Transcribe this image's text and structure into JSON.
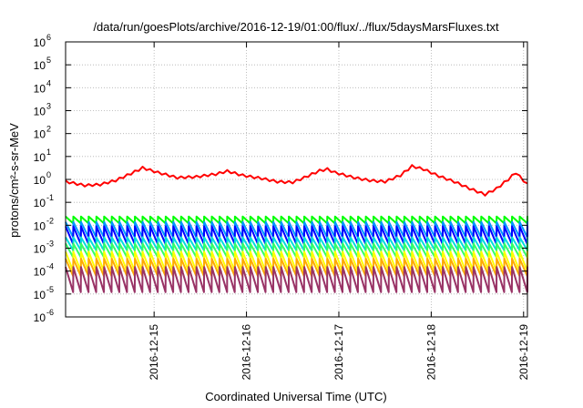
{
  "chart_data": {
    "type": "line",
    "title": "/data/run/goesPlots/archive/2016-12-19/01:00/flux/../flux/5daysMarsFluxes.txt",
    "xlabel": "Coordinated Universal Time (UTC)",
    "ylabel": "protons/cm²-s-sr-MeV",
    "y_scale": "log",
    "ylim": [
      1e-06,
      1000000.0
    ],
    "y_ticks": [
      {
        "value": 1e-06,
        "base": "10",
        "exp": "-6"
      },
      {
        "value": 1e-05,
        "base": "10",
        "exp": "-5"
      },
      {
        "value": 0.0001,
        "base": "10",
        "exp": "-4"
      },
      {
        "value": 0.001,
        "base": "10",
        "exp": "-3"
      },
      {
        "value": 0.01,
        "base": "10",
        "exp": "-2"
      },
      {
        "value": 0.1,
        "base": "10",
        "exp": "-1"
      },
      {
        "value": 1,
        "base": "10",
        "exp": "0"
      },
      {
        "value": 10,
        "base": "10",
        "exp": "1"
      },
      {
        "value": 100,
        "base": "10",
        "exp": "2"
      },
      {
        "value": 1000,
        "base": "10",
        "exp": "3"
      },
      {
        "value": 10000,
        "base": "10",
        "exp": "4"
      },
      {
        "value": 100000,
        "base": "10",
        "exp": "5"
      },
      {
        "value": 1000000,
        "base": "10",
        "exp": "6"
      }
    ],
    "xlim": [
      "2016-12-14 01:00",
      "2016-12-19 01:00"
    ],
    "x_ticks": [
      "2016-12-15",
      "2016-12-16",
      "2016-12-17",
      "2016-12-18",
      "2016-12-19"
    ],
    "grid": true,
    "sawtooth_period_hours": 2,
    "series": [
      {
        "color": "#ff0000",
        "points": [
          [
            "2016-12-14 01:00",
            0.8
          ],
          [
            "2016-12-14 06:00",
            0.55
          ],
          [
            "2016-12-14 10:00",
            0.6
          ],
          [
            "2016-12-14 14:00",
            0.9
          ],
          [
            "2016-12-14 18:00",
            1.8
          ],
          [
            "2016-12-14 21:00",
            3.2
          ],
          [
            "2016-12-15 01:00",
            2.0
          ],
          [
            "2016-12-15 06:00",
            1.2
          ],
          [
            "2016-12-15 11:00",
            1.3
          ],
          [
            "2016-12-15 16:00",
            1.7
          ],
          [
            "2016-12-15 19:00",
            2.3
          ],
          [
            "2016-12-15 23:00",
            1.5
          ],
          [
            "2016-12-16 04:00",
            1.1
          ],
          [
            "2016-12-16 08:00",
            0.8
          ],
          [
            "2016-12-16 12:00",
            0.75
          ],
          [
            "2016-12-16 15:00",
            1.2
          ],
          [
            "2016-12-16 19:00",
            2.4
          ],
          [
            "2016-12-16 21:00",
            2.8
          ],
          [
            "2016-12-16 23:00",
            2.0
          ],
          [
            "2016-12-17 04:00",
            1.2
          ],
          [
            "2016-12-17 08:00",
            0.9
          ],
          [
            "2016-12-17 12:00",
            0.8
          ],
          [
            "2016-12-17 16:00",
            1.5
          ],
          [
            "2016-12-17 19:00",
            3.8
          ],
          [
            "2016-12-17 22:00",
            2.8
          ],
          [
            "2016-12-18 02:00",
            1.4
          ],
          [
            "2016-12-18 06:00",
            0.8
          ],
          [
            "2016-12-18 10:00",
            0.4
          ],
          [
            "2016-12-18 14:00",
            0.22
          ],
          [
            "2016-12-18 17:00",
            0.4
          ],
          [
            "2016-12-18 20:00",
            1.0
          ],
          [
            "2016-12-18 22:00",
            2.0
          ],
          [
            "2016-12-19 01:00",
            0.6
          ]
        ]
      },
      {
        "color": "#00ff00",
        "range": [
          0.012,
          0.024
        ]
      },
      {
        "color": "#0099ff",
        "range": [
          0.003,
          0.014
        ]
      },
      {
        "color": "#0000ff",
        "range": [
          0.0015,
          0.009
        ]
      },
      {
        "color": "#00dddd",
        "range": [
          0.0008,
          0.003
        ]
      },
      {
        "color": "#33ff66",
        "range": [
          0.0004,
          0.0016
        ]
      },
      {
        "color": "#ffff00",
        "range": [
          0.0001,
          0.0007
        ]
      },
      {
        "color": "#ffaa00",
        "range": [
          6e-05,
          0.00035
        ]
      },
      {
        "color": "#993366",
        "range": [
          1.2e-05,
          0.00015
        ]
      }
    ]
  }
}
